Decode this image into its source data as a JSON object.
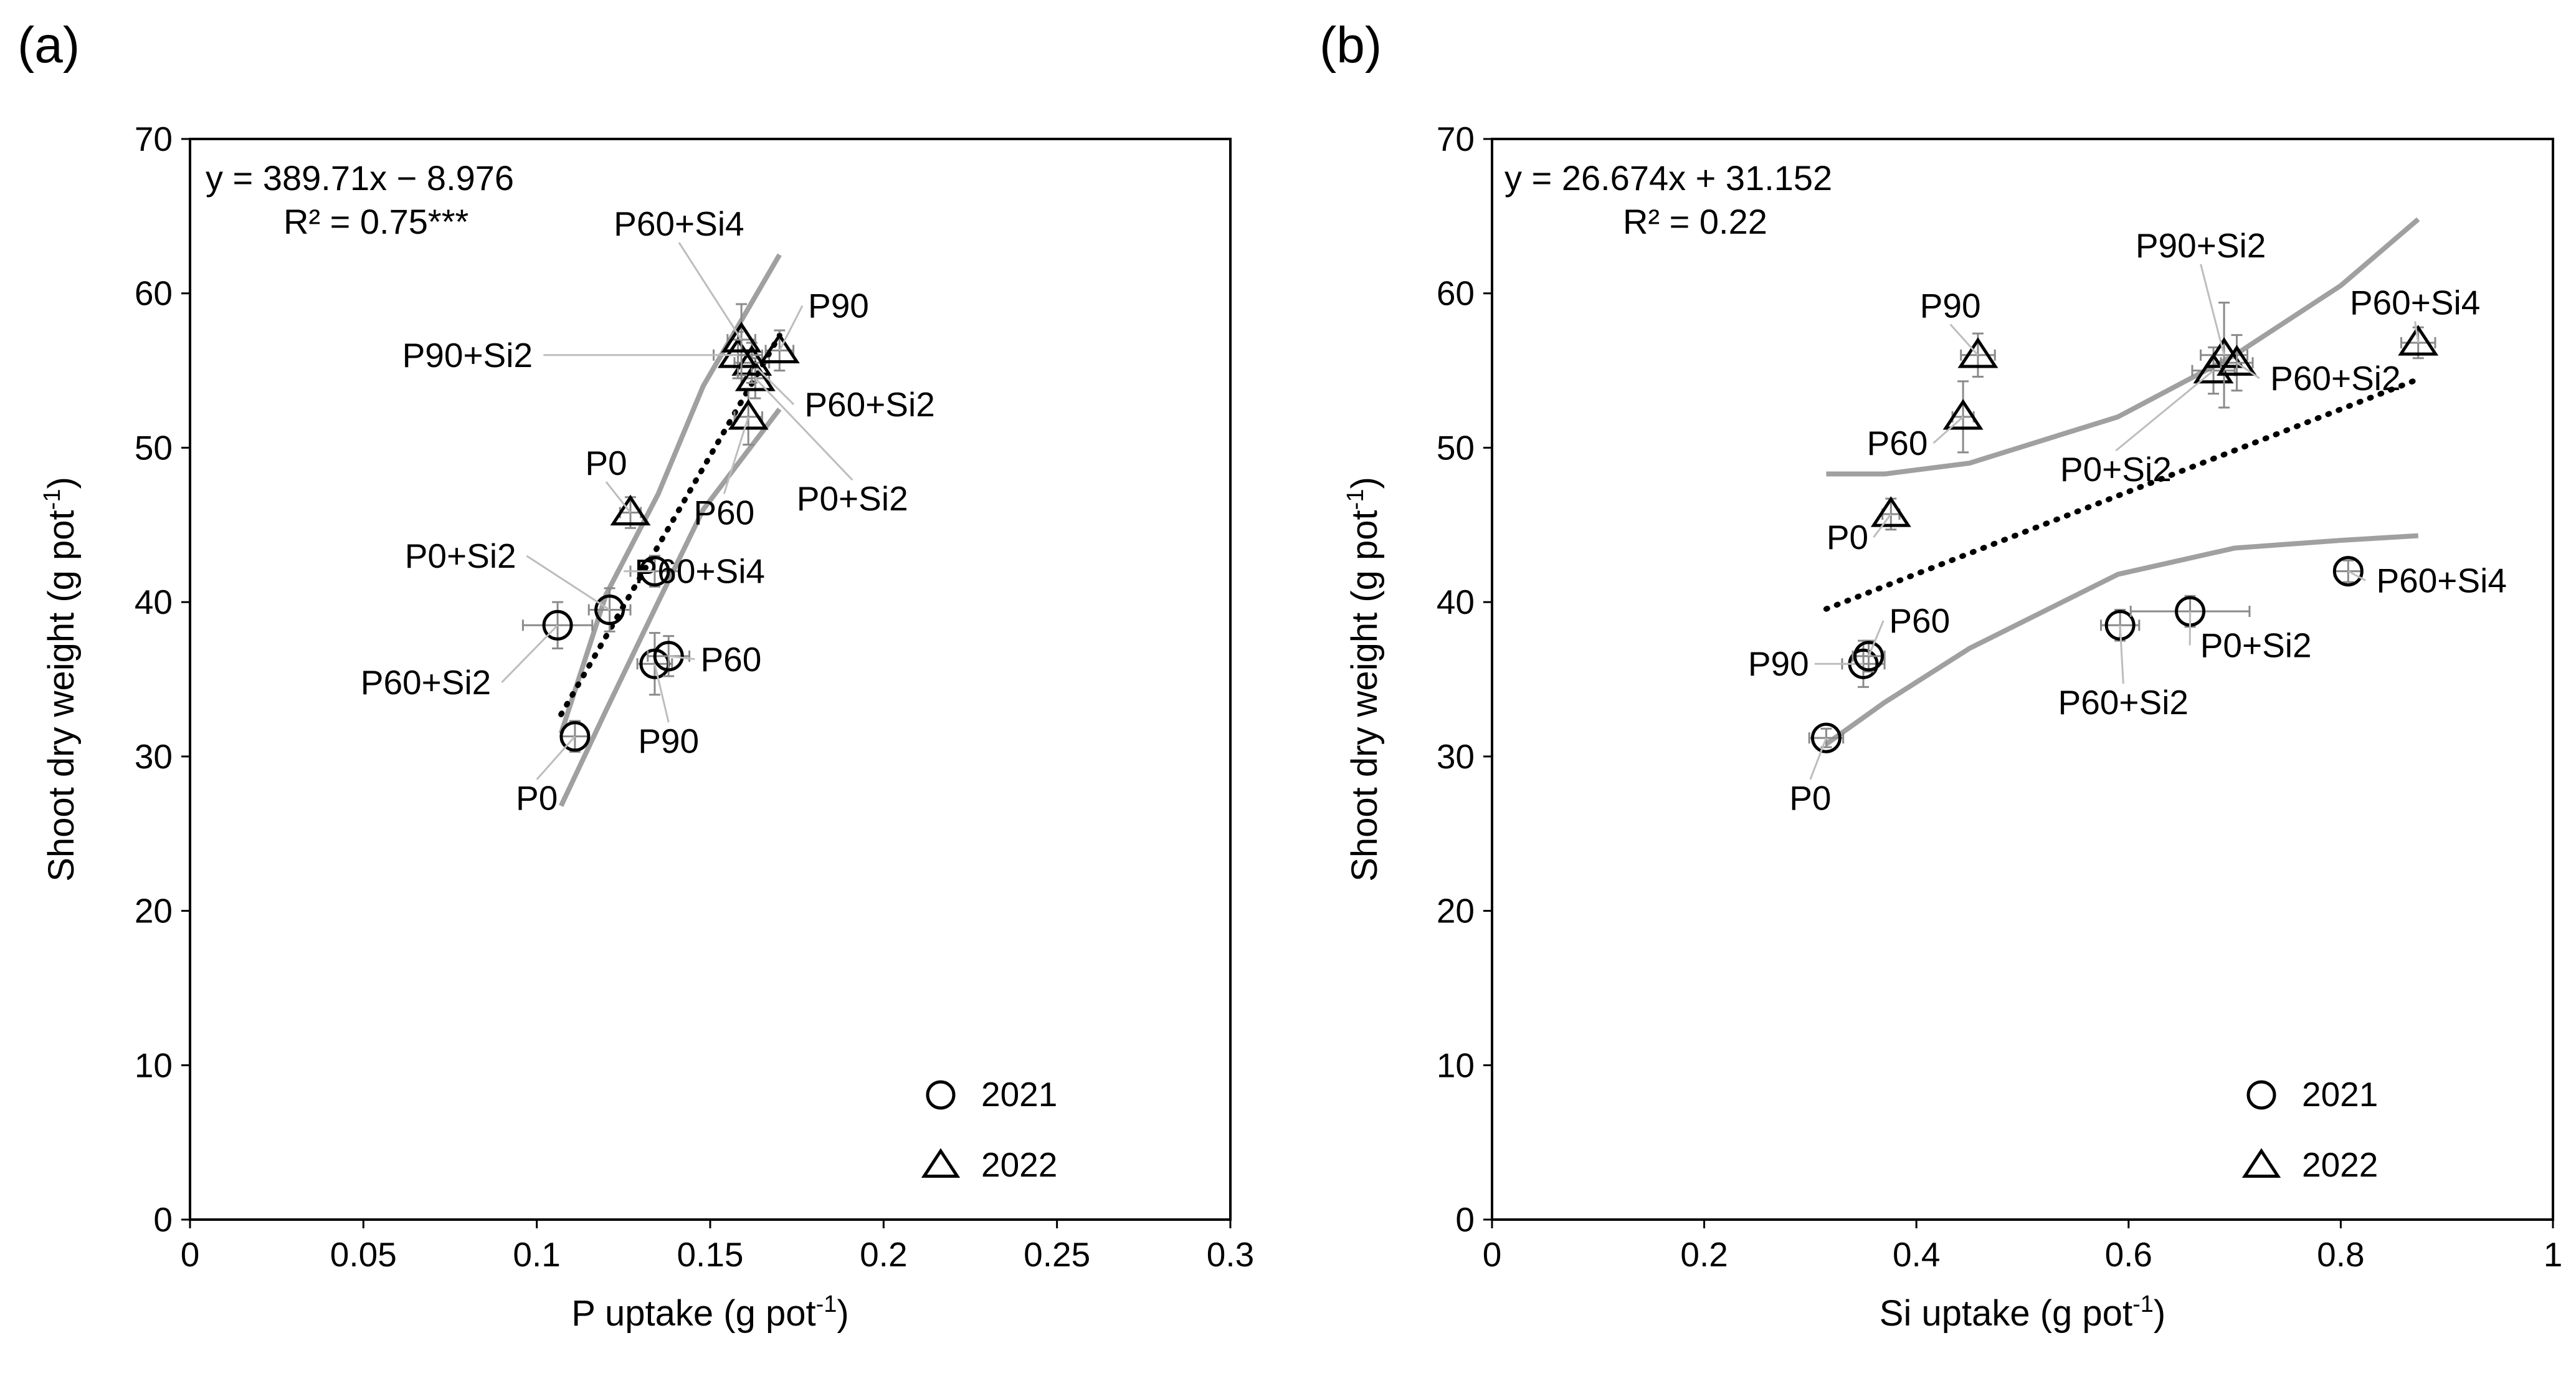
{
  "chart_data": [
    {
      "type": "scatter",
      "panel_label": "(a)",
      "xlabel": "P uptake (g pot",
      "xlabel_sup": "-1",
      "xlabel_close": ")",
      "ylabel": "Shoot dry weight (g pot",
      "ylabel_sup": "-1",
      "ylabel_close": ")",
      "xlim": [
        0,
        0.3
      ],
      "ylim": [
        0,
        70
      ],
      "xticks": [
        0,
        0.05,
        0.1,
        0.15,
        0.2,
        0.25,
        0.3
      ],
      "xtick_labels": [
        "0",
        "0.05",
        "0.1",
        "0.15",
        "0.2",
        "0.25",
        "0.3"
      ],
      "yticks": [
        0,
        10,
        20,
        30,
        40,
        50,
        60,
        70
      ],
      "ytick_labels": [
        "0",
        "10",
        "20",
        "30",
        "40",
        "50",
        "60",
        "70"
      ],
      "equation": "y = 389.71x − 8.976",
      "r2": "R² = 0.75***",
      "fit": {
        "slope": 389.71,
        "intercept": -8.976,
        "x_range": [
          0.107,
          0.17
        ]
      },
      "ci_upper": [
        [
          0.107,
          31.5
        ],
        [
          0.12,
          40.5
        ],
        [
          0.135,
          47.0
        ],
        [
          0.148,
          54.0
        ],
        [
          0.17,
          62.5
        ]
      ],
      "ci_lower": [
        [
          0.107,
          26.8
        ],
        [
          0.12,
          33.0
        ],
        [
          0.135,
          40.0
        ],
        [
          0.148,
          46.0
        ],
        [
          0.17,
          52.5
        ]
      ],
      "legend": [
        {
          "marker": "circle",
          "label": "2021"
        },
        {
          "marker": "triangle",
          "label": "2022"
        }
      ],
      "series": [
        {
          "name": "2021",
          "marker": "circle",
          "points": [
            {
              "label": "P0",
              "x": 0.111,
              "y": 31.3,
              "xerr": 0.004,
              "yerr": 1.0,
              "label_anchor": [
                0.1,
                27.3
              ]
            },
            {
              "label": "P90",
              "x": 0.134,
              "y": 36.0,
              "xerr": 0.005,
              "yerr": 2.0,
              "label_anchor": [
                0.138,
                31.0
              ]
            },
            {
              "label": "P60",
              "x": 0.138,
              "y": 36.5,
              "xerr": 0.006,
              "yerr": 1.3,
              "label_anchor": [
                0.156,
                36.3
              ]
            },
            {
              "label": "P60+Si2",
              "x": 0.106,
              "y": 38.5,
              "xerr": 0.01,
              "yerr": 1.5,
              "label_anchor": [
                0.068,
                34.8
              ]
            },
            {
              "label": "P0+Si2",
              "x": 0.121,
              "y": 39.5,
              "xerr": 0.006,
              "yerr": 1.4,
              "label_anchor": [
                0.078,
                43.0
              ]
            },
            {
              "label": "P60+Si4",
              "x": 0.134,
              "y": 42.0,
              "xerr": 0.007,
              "yerr": 1.0,
              "label_anchor": [
                0.147,
                42.0
              ]
            }
          ]
        },
        {
          "name": "2022",
          "marker": "triangle",
          "points": [
            {
              "label": "P0",
              "x": 0.127,
              "y": 45.8,
              "xerr": 0.003,
              "yerr": 1.0,
              "label_anchor": [
                0.12,
                49.0
              ]
            },
            {
              "label": "P60",
              "x": 0.161,
              "y": 52.0,
              "xerr": 0.004,
              "yerr": 1.8,
              "label_anchor": [
                0.154,
                45.8
              ]
            },
            {
              "label": "P0+Si2",
              "x": 0.163,
              "y": 54.5,
              "xerr": 0.004,
              "yerr": 1.3,
              "label_anchor": [
                0.191,
                46.7
              ]
            },
            {
              "label": "P60+Si2",
              "x": 0.162,
              "y": 55.5,
              "xerr": 0.005,
              "yerr": 1.3,
              "label_anchor": [
                0.196,
                52.8
              ]
            },
            {
              "label": "P90+Si2",
              "x": 0.158,
              "y": 56.0,
              "xerr": 0.007,
              "yerr": 1.5,
              "label_anchor": [
                0.08,
                56.0
              ]
            },
            {
              "label": "P60+Si4",
              "x": 0.159,
              "y": 57.0,
              "xerr": 0.004,
              "yerr": 2.3,
              "label_anchor": [
                0.141,
                64.5
              ]
            },
            {
              "label": "P90",
              "x": 0.17,
              "y": 56.3,
              "xerr": 0.004,
              "yerr": 1.3,
              "label_anchor": [
                0.187,
                59.2
              ]
            }
          ]
        }
      ]
    },
    {
      "type": "scatter",
      "panel_label": "(b)",
      "xlabel": "Si uptake (g pot",
      "xlabel_sup": "-1",
      "xlabel_close": ")",
      "ylabel": "Shoot dry weight (g pot",
      "ylabel_sup": "-1",
      "ylabel_close": ")",
      "xlim": [
        0,
        1
      ],
      "ylim": [
        0,
        70
      ],
      "xticks": [
        0,
        0.2,
        0.4,
        0.6,
        0.8,
        1
      ],
      "xtick_labels": [
        "0",
        "0.2",
        "0.4",
        "0.6",
        "0.8",
        "1"
      ],
      "yticks": [
        0,
        10,
        20,
        30,
        40,
        50,
        60,
        70
      ],
      "ytick_labels": [
        "0",
        "10",
        "20",
        "30",
        "40",
        "50",
        "60",
        "70"
      ],
      "equation": "y = 26.674x + 31.152",
      "r2": "R² = 0.22",
      "fit": {
        "slope": 26.674,
        "intercept": 31.152,
        "x_range": [
          0.315,
          0.873
        ]
      },
      "ci_upper": [
        [
          0.315,
          48.3
        ],
        [
          0.37,
          48.3
        ],
        [
          0.45,
          49.0
        ],
        [
          0.59,
          52.0
        ],
        [
          0.7,
          56.0
        ],
        [
          0.8,
          60.5
        ],
        [
          0.873,
          64.8
        ]
      ],
      "ci_lower": [
        [
          0.315,
          30.8
        ],
        [
          0.37,
          33.5
        ],
        [
          0.45,
          37.0
        ],
        [
          0.59,
          41.8
        ],
        [
          0.7,
          43.5
        ],
        [
          0.8,
          44.0
        ],
        [
          0.873,
          44.3
        ]
      ],
      "legend": [
        {
          "marker": "circle",
          "label": "2021"
        },
        {
          "marker": "triangle",
          "label": "2022"
        }
      ],
      "series": [
        {
          "name": "2021",
          "marker": "circle",
          "points": [
            {
              "label": "P0",
              "x": 0.315,
              "y": 31.2,
              "xerr": 0.016,
              "yerr": 0.6,
              "label_anchor": [
                0.3,
                27.3
              ]
            },
            {
              "label": "P90",
              "x": 0.35,
              "y": 36.0,
              "xerr": 0.02,
              "yerr": 1.5,
              "label_anchor": [
                0.27,
                36.0
              ]
            },
            {
              "label": "P60",
              "x": 0.355,
              "y": 36.5,
              "xerr": 0.015,
              "yerr": 1.0,
              "label_anchor": [
                0.403,
                38.8
              ]
            },
            {
              "label": "P60+Si2",
              "x": 0.592,
              "y": 38.5,
              "xerr": 0.018,
              "yerr": 1.0,
              "label_anchor": [
                0.595,
                33.5
              ]
            },
            {
              "label": "P0+Si2",
              "x": 0.658,
              "y": 39.4,
              "xerr": 0.056,
              "yerr": 1.0,
              "label_anchor": [
                0.72,
                37.2
              ]
            },
            {
              "label": "P60+Si4",
              "x": 0.807,
              "y": 42.0,
              "xerr": 0.013,
              "yerr": 0.7,
              "label_anchor": [
                0.895,
                41.4
              ]
            }
          ]
        },
        {
          "name": "2022",
          "marker": "triangle",
          "points": [
            {
              "label": "P0",
              "x": 0.376,
              "y": 45.7,
              "xerr": 0.008,
              "yerr": 1.0,
              "label_anchor": [
                0.335,
                44.2
              ]
            },
            {
              "label": "P60",
              "x": 0.444,
              "y": 52.0,
              "xerr": 0.01,
              "yerr": 2.3,
              "label_anchor": [
                0.382,
                50.3
              ]
            },
            {
              "label": "P90",
              "x": 0.458,
              "y": 56.0,
              "xerr": 0.016,
              "yerr": 1.4,
              "label_anchor": [
                0.432,
                59.2
              ]
            },
            {
              "label": "P0+Si2",
              "x": 0.68,
              "y": 55.0,
              "xerr": 0.02,
              "yerr": 1.5,
              "label_anchor": [
                0.588,
                48.6
              ]
            },
            {
              "label": "P90+Si2",
              "x": 0.69,
              "y": 56.0,
              "xerr": 0.022,
              "yerr": 3.4,
              "label_anchor": [
                0.668,
                63.1
              ]
            },
            {
              "label": "P60+Si2",
              "x": 0.702,
              "y": 55.5,
              "xerr": 0.015,
              "yerr": 1.8,
              "label_anchor": [
                0.795,
                54.5
              ]
            },
            {
              "label": "P60+Si4",
              "x": 0.873,
              "y": 56.8,
              "xerr": 0.016,
              "yerr": 1.0,
              "label_anchor": [
                0.87,
                59.4
              ]
            }
          ]
        }
      ]
    }
  ]
}
